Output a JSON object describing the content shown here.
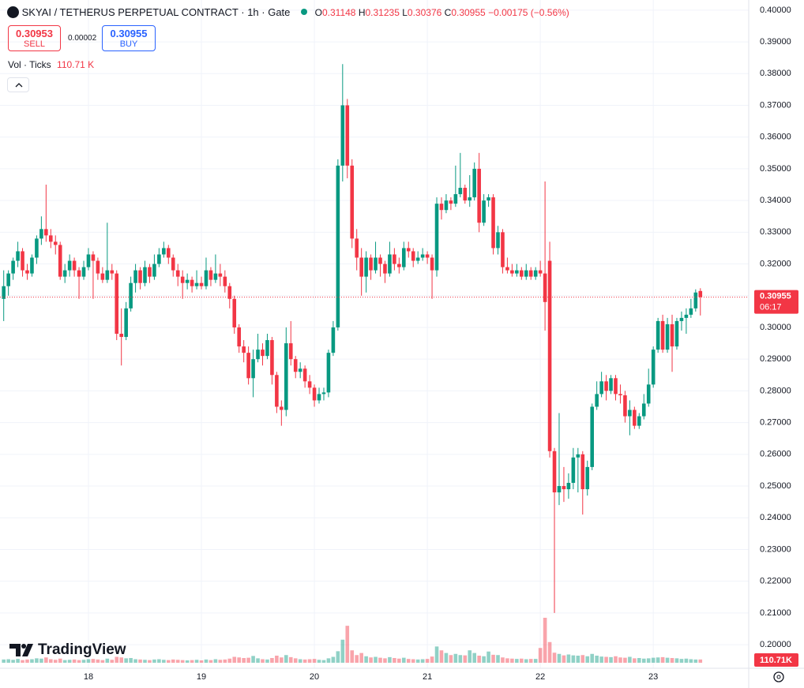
{
  "chart_data": {
    "type": "candlestick",
    "title": "SKYAI / TETHERUS PERPETUAL CONTRACT · 1h · Gate",
    "header": {
      "o_label": "O",
      "open": 0.31148,
      "h_label": "H",
      "high": 0.31235,
      "l_label": "L",
      "low": 0.30376,
      "c_label": "C",
      "close": 0.30955,
      "change": "−0.00175 (−0.56%)"
    },
    "sell_price": 0.30953,
    "sell_label": "SELL",
    "spread": 2e-05,
    "buy_price": 0.30955,
    "buy_label": "BUY",
    "volume_indicator": "Vol · Ticks",
    "volume_indicator_value": "110.71 K",
    "last_price": 0.30955,
    "countdown": "06:17",
    "volume_axis_label": "110.71K",
    "watermark": "TradingView",
    "up_color": "#089981",
    "down_color": "#f23645",
    "ylim": [
      0.1943,
      0.4032
    ],
    "yticks": [
      {
        "value": 0.2,
        "label": "0.20000"
      },
      {
        "value": 0.21,
        "label": "0.21000"
      },
      {
        "value": 0.22,
        "label": "0.22000"
      },
      {
        "value": 0.23,
        "label": "0.23000"
      },
      {
        "value": 0.24,
        "label": "0.24000"
      },
      {
        "value": 0.25,
        "label": "0.25000"
      },
      {
        "value": 0.26,
        "label": "0.26000"
      },
      {
        "value": 0.27,
        "label": "0.27000"
      },
      {
        "value": 0.28,
        "label": "0.28000"
      },
      {
        "value": 0.29,
        "label": "0.29000"
      },
      {
        "value": 0.3,
        "label": "0.30000"
      },
      {
        "value": 0.31,
        "label": "0.31000"
      },
      {
        "value": 0.32,
        "label": "0.32000"
      },
      {
        "value": 0.33,
        "label": "0.33000"
      },
      {
        "value": 0.34,
        "label": "0.34000"
      },
      {
        "value": 0.35,
        "label": "0.35000"
      },
      {
        "value": 0.36,
        "label": "0.36000"
      },
      {
        "value": 0.37,
        "label": "0.37000"
      },
      {
        "value": 0.38,
        "label": "0.38000"
      },
      {
        "value": 0.39,
        "label": "0.39000"
      },
      {
        "value": 0.4,
        "label": "0.40000"
      }
    ],
    "grid": true,
    "categories": [
      null,
      null,
      null,
      null,
      null,
      null,
      null,
      null,
      null,
      null,
      null,
      null,
      null,
      null,
      null,
      null,
      null,
      null,
      "18",
      null,
      null,
      null,
      null,
      null,
      null,
      null,
      null,
      null,
      null,
      null,
      null,
      null,
      null,
      null,
      null,
      null,
      null,
      null,
      null,
      null,
      null,
      null,
      "19",
      null,
      null,
      null,
      null,
      null,
      null,
      null,
      null,
      null,
      null,
      null,
      null,
      null,
      null,
      null,
      null,
      null,
      null,
      null,
      null,
      null,
      null,
      null,
      "20",
      null,
      null,
      null,
      null,
      null,
      null,
      null,
      null,
      null,
      null,
      null,
      null,
      null,
      null,
      null,
      null,
      null,
      null,
      null,
      null,
      null,
      null,
      null,
      "21",
      null,
      null,
      null,
      null,
      null,
      null,
      null,
      null,
      null,
      null,
      null,
      null,
      null,
      null,
      null,
      null,
      null,
      null,
      null,
      null,
      null,
      null,
      null,
      "22",
      null,
      null,
      null,
      null,
      null,
      null,
      null,
      null,
      null,
      null,
      null,
      null,
      null,
      null,
      null,
      null,
      null,
      null,
      null,
      null,
      null,
      null,
      null,
      "23",
      null,
      null,
      null,
      null,
      null,
      null,
      null,
      null,
      null,
      null
    ],
    "candles": [
      [
        0.309,
        0.318,
        0.302,
        0.313
      ],
      [
        0.313,
        0.318,
        0.31,
        0.317
      ],
      [
        0.317,
        0.322,
        0.315,
        0.321
      ],
      [
        0.321,
        0.327,
        0.319,
        0.324
      ],
      [
        0.324,
        0.325,
        0.316,
        0.318
      ],
      [
        0.318,
        0.32,
        0.315,
        0.317
      ],
      [
        0.317,
        0.323,
        0.316,
        0.322
      ],
      [
        0.322,
        0.329,
        0.32,
        0.328
      ],
      [
        0.328,
        0.335,
        0.326,
        0.331
      ],
      [
        0.331,
        0.345,
        0.327,
        0.329
      ],
      [
        0.329,
        0.331,
        0.325,
        0.327
      ],
      [
        0.327,
        0.329,
        0.323,
        0.326
      ],
      [
        0.326,
        0.327,
        0.315,
        0.316
      ],
      [
        0.316,
        0.32,
        0.314,
        0.318
      ],
      [
        0.318,
        0.323,
        0.316,
        0.321
      ],
      [
        0.321,
        0.322,
        0.316,
        0.318
      ],
      [
        0.318,
        0.319,
        0.309,
        0.316
      ],
      [
        0.316,
        0.321,
        0.315,
        0.319
      ],
      [
        0.319,
        0.325,
        0.318,
        0.323
      ],
      [
        0.323,
        0.324,
        0.309,
        0.321
      ],
      [
        0.321,
        0.322,
        0.315,
        0.317
      ],
      [
        0.317,
        0.319,
        0.314,
        0.315
      ],
      [
        0.315,
        0.333,
        0.314,
        0.318
      ],
      [
        0.318,
        0.32,
        0.315,
        0.317
      ],
      [
        0.317,
        0.318,
        0.296,
        0.298
      ],
      [
        0.298,
        0.306,
        0.288,
        0.297
      ],
      [
        0.297,
        0.308,
        0.296,
        0.306
      ],
      [
        0.306,
        0.316,
        0.305,
        0.314
      ],
      [
        0.314,
        0.32,
        0.311,
        0.318
      ],
      [
        0.318,
        0.319,
        0.312,
        0.314
      ],
      [
        0.314,
        0.321,
        0.313,
        0.319
      ],
      [
        0.319,
        0.32,
        0.314,
        0.316
      ],
      [
        0.316,
        0.323,
        0.315,
        0.32
      ],
      [
        0.32,
        0.325,
        0.319,
        0.323
      ],
      [
        0.323,
        0.327,
        0.322,
        0.325
      ],
      [
        0.325,
        0.326,
        0.32,
        0.322
      ],
      [
        0.322,
        0.323,
        0.316,
        0.318
      ],
      [
        0.318,
        0.32,
        0.313,
        0.316
      ],
      [
        0.316,
        0.318,
        0.309,
        0.314
      ],
      [
        0.314,
        0.317,
        0.312,
        0.315
      ],
      [
        0.315,
        0.316,
        0.311,
        0.313
      ],
      [
        0.313,
        0.318,
        0.312,
        0.314
      ],
      [
        0.314,
        0.316,
        0.312,
        0.313
      ],
      [
        0.313,
        0.322,
        0.312,
        0.318
      ],
      [
        0.318,
        0.319,
        0.313,
        0.315
      ],
      [
        0.315,
        0.323,
        0.314,
        0.317
      ],
      [
        0.317,
        0.32,
        0.313,
        0.316
      ],
      [
        0.316,
        0.318,
        0.311,
        0.313
      ],
      [
        0.313,
        0.314,
        0.306,
        0.309
      ],
      [
        0.309,
        0.31,
        0.298,
        0.3
      ],
      [
        0.3,
        0.301,
        0.292,
        0.294
      ],
      [
        0.294,
        0.296,
        0.289,
        0.292
      ],
      [
        0.292,
        0.294,
        0.282,
        0.284
      ],
      [
        0.284,
        0.293,
        0.278,
        0.29
      ],
      [
        0.29,
        0.298,
        0.289,
        0.293
      ],
      [
        0.293,
        0.295,
        0.288,
        0.291
      ],
      [
        0.291,
        0.298,
        0.29,
        0.296
      ],
      [
        0.296,
        0.297,
        0.282,
        0.285
      ],
      [
        0.285,
        0.286,
        0.273,
        0.275
      ],
      [
        0.275,
        0.277,
        0.269,
        0.274
      ],
      [
        0.274,
        0.3,
        0.272,
        0.295
      ],
      [
        0.295,
        0.302,
        0.288,
        0.29
      ],
      [
        0.29,
        0.291,
        0.284,
        0.286
      ],
      [
        0.286,
        0.289,
        0.284,
        0.287
      ],
      [
        0.287,
        0.288,
        0.281,
        0.283
      ],
      [
        0.283,
        0.285,
        0.279,
        0.281
      ],
      [
        0.281,
        0.282,
        0.275,
        0.277
      ],
      [
        0.277,
        0.281,
        0.276,
        0.279
      ],
      [
        0.279,
        0.281,
        0.277,
        0.2795
      ],
      [
        0.2795,
        0.293,
        0.278,
        0.292
      ],
      [
        0.292,
        0.302,
        0.291,
        0.3
      ],
      [
        0.3,
        0.353,
        0.299,
        0.351
      ],
      [
        0.351,
        0.383,
        0.346,
        0.37
      ],
      [
        0.37,
        0.372,
        0.347,
        0.351
      ],
      [
        0.351,
        0.353,
        0.325,
        0.328
      ],
      [
        0.328,
        0.331,
        0.318,
        0.322
      ],
      [
        0.322,
        0.325,
        0.31,
        0.316
      ],
      [
        0.316,
        0.324,
        0.311,
        0.322
      ],
      [
        0.322,
        0.323,
        0.315,
        0.318
      ],
      [
        0.318,
        0.327,
        0.317,
        0.322
      ],
      [
        0.322,
        0.323,
        0.316,
        0.32
      ],
      [
        0.32,
        0.321,
        0.314,
        0.317
      ],
      [
        0.317,
        0.327,
        0.316,
        0.323
      ],
      [
        0.323,
        0.325,
        0.318,
        0.32
      ],
      [
        0.32,
        0.322,
        0.317,
        0.319
      ],
      [
        0.319,
        0.327,
        0.318,
        0.325
      ],
      [
        0.325,
        0.327,
        0.322,
        0.324
      ],
      [
        0.324,
        0.325,
        0.319,
        0.321
      ],
      [
        0.321,
        0.324,
        0.32,
        0.322
      ],
      [
        0.322,
        0.325,
        0.321,
        0.323
      ],
      [
        0.323,
        0.324,
        0.32,
        0.322
      ],
      [
        0.322,
        0.323,
        0.309,
        0.318
      ],
      [
        0.318,
        0.341,
        0.316,
        0.339
      ],
      [
        0.339,
        0.341,
        0.334,
        0.337
      ],
      [
        0.337,
        0.342,
        0.336,
        0.34
      ],
      [
        0.34,
        0.341,
        0.337,
        0.339
      ],
      [
        0.339,
        0.351,
        0.338,
        0.342
      ],
      [
        0.342,
        0.355,
        0.341,
        0.344
      ],
      [
        0.344,
        0.345,
        0.339,
        0.34
      ],
      [
        0.34,
        0.348,
        0.338,
        0.341
      ],
      [
        0.341,
        0.352,
        0.34,
        0.35
      ],
      [
        0.35,
        0.355,
        0.33,
        0.333
      ],
      [
        0.333,
        0.342,
        0.332,
        0.34
      ],
      [
        0.34,
        0.342,
        0.338,
        0.341
      ],
      [
        0.341,
        0.342,
        0.323,
        0.325
      ],
      [
        0.325,
        0.332,
        0.323,
        0.33
      ],
      [
        0.33,
        0.331,
        0.317,
        0.319
      ],
      [
        0.319,
        0.322,
        0.317,
        0.318
      ],
      [
        0.318,
        0.32,
        0.316,
        0.317
      ],
      [
        0.317,
        0.32,
        0.316,
        0.318
      ],
      [
        0.318,
        0.319,
        0.315,
        0.316
      ],
      [
        0.316,
        0.32,
        0.315,
        0.318
      ],
      [
        0.318,
        0.319,
        0.315,
        0.316
      ],
      [
        0.316,
        0.319,
        0.315,
        0.318
      ],
      [
        0.318,
        0.321,
        0.316,
        0.317
      ],
      [
        0.317,
        0.346,
        0.299,
        0.308
      ],
      [
        0.321,
        0.327,
        0.259,
        0.261
      ],
      [
        0.261,
        0.262,
        0.21,
        0.248
      ],
      [
        0.248,
        0.273,
        0.244,
        0.25
      ],
      [
        0.25,
        0.256,
        0.245,
        0.249
      ],
      [
        0.249,
        0.254,
        0.246,
        0.251
      ],
      [
        0.251,
        0.262,
        0.249,
        0.259
      ],
      [
        0.259,
        0.262,
        0.248,
        0.26
      ],
      [
        0.26,
        0.261,
        0.241,
        0.249
      ],
      [
        0.249,
        0.258,
        0.247,
        0.256
      ],
      [
        0.256,
        0.276,
        0.255,
        0.275
      ],
      [
        0.275,
        0.283,
        0.274,
        0.279
      ],
      [
        0.279,
        0.286,
        0.278,
        0.283
      ],
      [
        0.283,
        0.285,
        0.277,
        0.28
      ],
      [
        0.28,
        0.285,
        0.279,
        0.284
      ],
      [
        0.284,
        0.285,
        0.277,
        0.279
      ],
      [
        0.279,
        0.282,
        0.276,
        0.2786
      ],
      [
        0.2786,
        0.28,
        0.27,
        0.272
      ],
      [
        0.272,
        0.277,
        0.266,
        0.274
      ],
      [
        0.274,
        0.275,
        0.268,
        0.269
      ],
      [
        0.269,
        0.273,
        0.268,
        0.272
      ],
      [
        0.272,
        0.279,
        0.271,
        0.276
      ],
      [
        0.276,
        0.287,
        0.275,
        0.282
      ],
      [
        0.282,
        0.294,
        0.281,
        0.293
      ],
      [
        0.293,
        0.303,
        0.292,
        0.302
      ],
      [
        0.302,
        0.304,
        0.292,
        0.293
      ],
      [
        0.293,
        0.303,
        0.292,
        0.301
      ],
      [
        0.301,
        0.304,
        0.286,
        0.294
      ],
      [
        0.294,
        0.303,
        0.293,
        0.302
      ],
      [
        0.302,
        0.305,
        0.299,
        0.303
      ],
      [
        0.303,
        0.306,
        0.298,
        0.304
      ],
      [
        0.304,
        0.309,
        0.303,
        0.306
      ],
      [
        0.306,
        0.312,
        0.305,
        0.311
      ],
      [
        0.31148,
        0.31235,
        0.30376,
        0.30955
      ]
    ],
    "volumes": [
      110,
      120,
      100,
      130,
      90,
      110,
      120,
      150,
      140,
      180,
      120,
      100,
      140,
      90,
      100,
      110,
      90,
      100,
      120,
      130,
      110,
      90,
      140,
      100,
      200,
      180,
      150,
      160,
      120,
      110,
      100,
      90,
      110,
      120,
      100,
      90,
      110,
      100,
      90,
      80,
      90,
      100,
      80,
      110,
      90,
      120,
      100,
      110,
      140,
      200,
      180,
      160,
      170,
      230,
      150,
      120,
      110,
      160,
      240,
      180,
      260,
      190,
      150,
      120,
      110,
      120,
      130,
      100,
      90,
      150,
      200,
      390,
      780,
      1250,
      420,
      260,
      330,
      220,
      180,
      200,
      170,
      150,
      190,
      160,
      140,
      170,
      130,
      120,
      110,
      120,
      130,
      210,
      550,
      420,
      330,
      260,
      300,
      260,
      250,
      420,
      330,
      240,
      220,
      380,
      270,
      260,
      180,
      150,
      140,
      130,
      140,
      120,
      130,
      130,
      500,
      1520,
      700,
      340,
      300,
      250,
      280,
      250,
      240,
      260,
      220,
      300,
      240,
      210,
      200,
      190,
      220,
      180,
      170,
      200,
      150,
      160,
      140,
      150,
      170,
      180,
      190,
      170,
      160,
      150,
      130,
      140,
      120,
      110,
      110.71
    ]
  }
}
